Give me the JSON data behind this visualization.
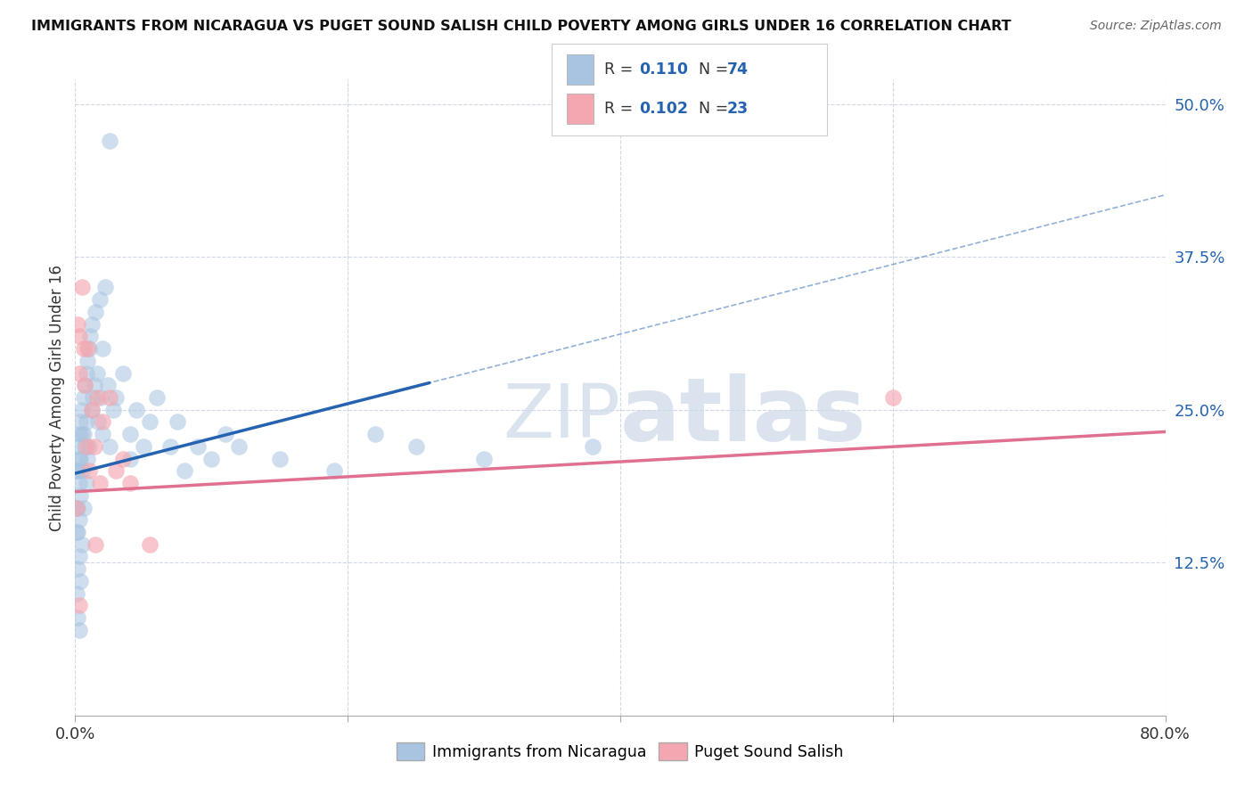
{
  "title": "IMMIGRANTS FROM NICARAGUA VS PUGET SOUND SALISH CHILD POVERTY AMONG GIRLS UNDER 16 CORRELATION CHART",
  "source": "Source: ZipAtlas.com",
  "ylabel": "Child Poverty Among Girls Under 16",
  "xlim": [
    0.0,
    0.8
  ],
  "ylim": [
    0.0,
    0.52
  ],
  "ytick_positions": [
    0.0,
    0.125,
    0.25,
    0.375,
    0.5
  ],
  "ytick_labels": [
    "",
    "12.5%",
    "25.0%",
    "37.5%",
    "50.0%"
  ],
  "R_blue": 0.11,
  "N_blue": 74,
  "R_pink": 0.102,
  "N_pink": 23,
  "blue_color": "#a8c4e0",
  "pink_color": "#f4a7b0",
  "blue_line_color": "#2563b0",
  "pink_line_color": "#e07090",
  "background_color": "#ffffff",
  "grid_color": "#d0d8e8",
  "watermark_color": "#ccd8e8",
  "blue_scatter_x": [
    0.001,
    0.001,
    0.001,
    0.001,
    0.002,
    0.002,
    0.002,
    0.002,
    0.002,
    0.002,
    0.003,
    0.003,
    0.003,
    0.003,
    0.003,
    0.003,
    0.004,
    0.004,
    0.004,
    0.004,
    0.005,
    0.005,
    0.005,
    0.005,
    0.006,
    0.006,
    0.006,
    0.007,
    0.007,
    0.008,
    0.008,
    0.008,
    0.009,
    0.009,
    0.01,
    0.01,
    0.011,
    0.012,
    0.012,
    0.013,
    0.014,
    0.015,
    0.016,
    0.017,
    0.018,
    0.019,
    0.02,
    0.02,
    0.022,
    0.024,
    0.025,
    0.028,
    0.03,
    0.035,
    0.04,
    0.04,
    0.045,
    0.05,
    0.055,
    0.06,
    0.07,
    0.075,
    0.08,
    0.09,
    0.1,
    0.11,
    0.12,
    0.15,
    0.19,
    0.22,
    0.25,
    0.3,
    0.38,
    0.025
  ],
  "blue_scatter_y": [
    0.2,
    0.17,
    0.15,
    0.1,
    0.22,
    0.2,
    0.17,
    0.15,
    0.12,
    0.08,
    0.23,
    0.21,
    0.19,
    0.16,
    0.13,
    0.07,
    0.24,
    0.21,
    0.18,
    0.11,
    0.25,
    0.23,
    0.2,
    0.14,
    0.26,
    0.23,
    0.17,
    0.27,
    0.22,
    0.28,
    0.24,
    0.19,
    0.29,
    0.21,
    0.3,
    0.22,
    0.31,
    0.32,
    0.25,
    0.26,
    0.27,
    0.33,
    0.28,
    0.24,
    0.34,
    0.26,
    0.3,
    0.23,
    0.35,
    0.27,
    0.22,
    0.25,
    0.26,
    0.28,
    0.23,
    0.21,
    0.25,
    0.22,
    0.24,
    0.26,
    0.22,
    0.24,
    0.2,
    0.22,
    0.21,
    0.23,
    0.22,
    0.21,
    0.2,
    0.23,
    0.22,
    0.21,
    0.22,
    0.47
  ],
  "pink_scatter_x": [
    0.001,
    0.002,
    0.003,
    0.003,
    0.005,
    0.006,
    0.007,
    0.008,
    0.009,
    0.01,
    0.012,
    0.014,
    0.016,
    0.018,
    0.02,
    0.025,
    0.03,
    0.035,
    0.04,
    0.055,
    0.6,
    0.003,
    0.015
  ],
  "pink_scatter_y": [
    0.17,
    0.32,
    0.31,
    0.28,
    0.35,
    0.3,
    0.27,
    0.22,
    0.3,
    0.2,
    0.25,
    0.22,
    0.26,
    0.19,
    0.24,
    0.26,
    0.2,
    0.21,
    0.19,
    0.14,
    0.26,
    0.09,
    0.14
  ]
}
